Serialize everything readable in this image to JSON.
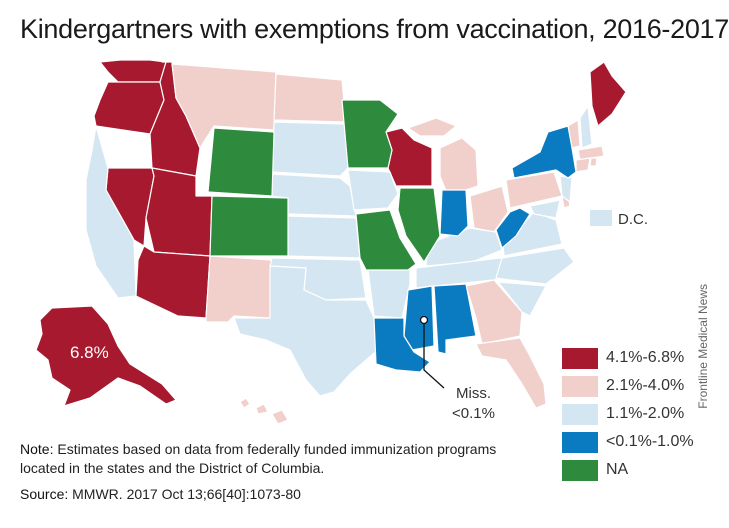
{
  "title": "Kindergartners with exemptions from vaccination, 2016-2017",
  "colors": {
    "cat1": "#a6192e",
    "cat2": "#f1cfcb",
    "cat3": "#d5e6f3",
    "cat4": "#0b7bc1",
    "na": "#2e8b3e"
  },
  "legend": [
    {
      "label": "4.1%-6.8%",
      "color": "#a6192e"
    },
    {
      "label": "2.1%-4.0%",
      "color": "#f1cfcb"
    },
    {
      "label": "1.1%-2.0%",
      "color": "#d5e6f3"
    },
    {
      "label": "<0.1%-1.0%",
      "color": "#0b7bc1"
    },
    {
      "label": "NA",
      "color": "#2e8b3e"
    }
  ],
  "annotations": {
    "alaska_value": "6.8%",
    "dc_label": "D.C.",
    "miss_line1": "Miss.",
    "miss_line2": "<0.1%"
  },
  "note_prefix": "Note:",
  "note_text": " Estimates based on data from federally funded immunization programs located in the states and the District of Columbia.",
  "source_prefix": "Source:",
  "source_text": " MMWR. 2017 Oct 13;66[40]:1073-80",
  "credit": "Frontline Medical News"
}
